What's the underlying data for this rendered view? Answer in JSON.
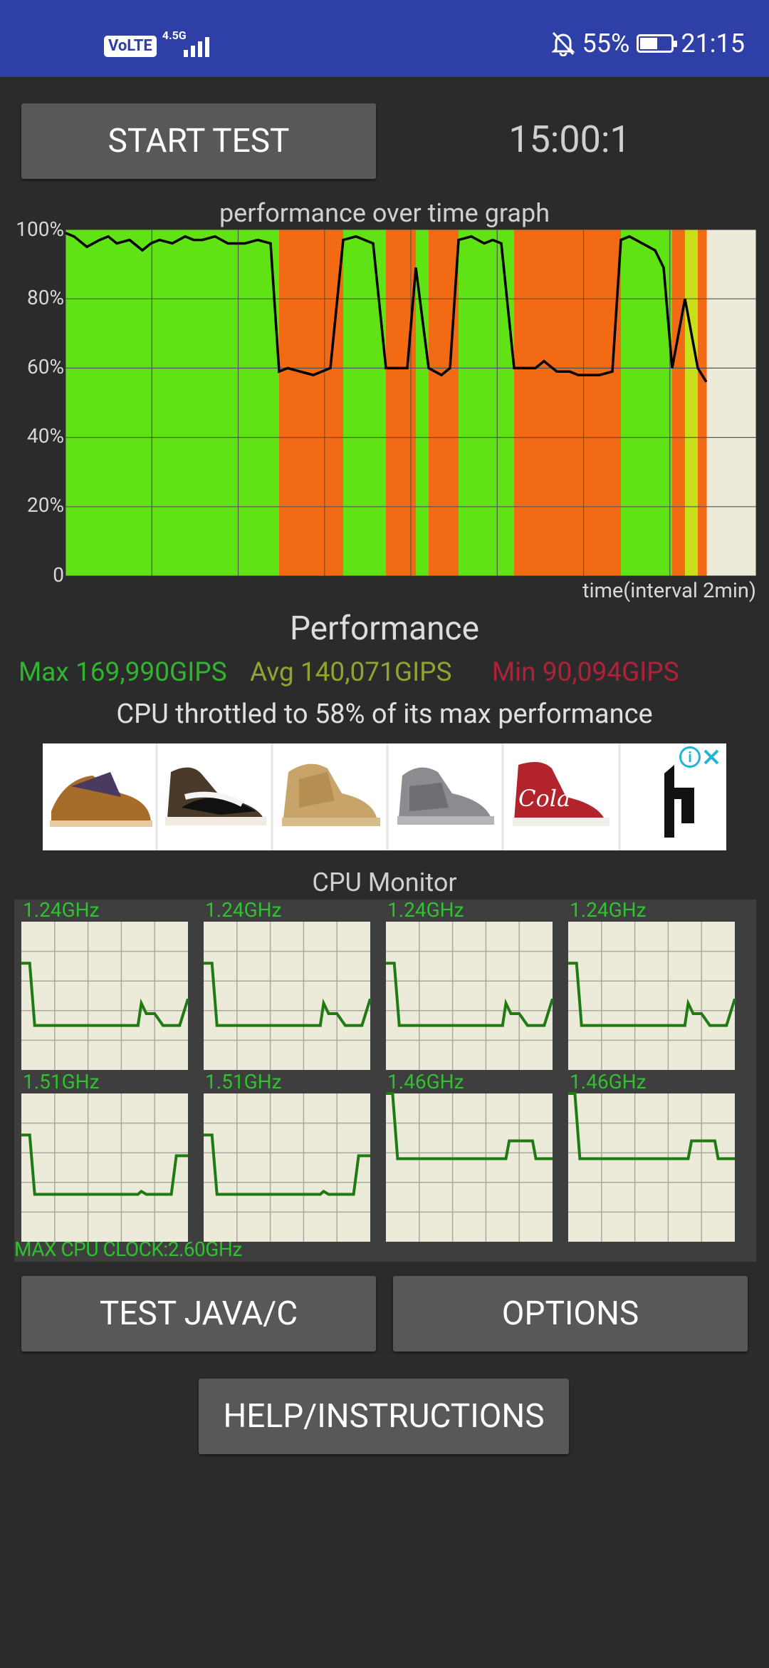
{
  "statusbar": {
    "volte": "VoLTE",
    "network": "4.5G",
    "battery_pct": "55%",
    "time": "21:15",
    "icons": [
      "volte-icon",
      "signal-icon",
      "bell-off-icon",
      "battery-icon"
    ]
  },
  "controls": {
    "start_label": "START TEST",
    "timer": "15:00:1",
    "test_java_label": "TEST JAVA/C",
    "options_label": "OPTIONS",
    "help_label": "HELP/INSTRUCTIONS"
  },
  "graph": {
    "title": "performance over time graph",
    "xlabel": "time(interval 2min)",
    "yticks": [
      "100%",
      "80%",
      "60%",
      "40%",
      "20%",
      "0"
    ]
  },
  "chart_data": [
    {
      "type": "area",
      "title": "performance over time graph",
      "xlabel": "time(interval 2min)",
      "ylabel": "",
      "ylim": [
        0,
        100
      ],
      "yticks": [
        0,
        20,
        40,
        60,
        80,
        100
      ],
      "grid": true,
      "series": [
        {
          "x": [
            0,
            0.2,
            0.5,
            0.8,
            1,
            1.2,
            1.5,
            1.8,
            2,
            2.2,
            2.5,
            2.8,
            3,
            3.2,
            3.5,
            3.8,
            4,
            4.2,
            4.5,
            4.8,
            5,
            5.2,
            5.5,
            5.8,
            6,
            6.2,
            6.5,
            6.8,
            7,
            7.2,
            7.5,
            7.8,
            8,
            8.2,
            8.5,
            8.8,
            9,
            9.2,
            9.5,
            9.8,
            10,
            10.2,
            10.5,
            10.8,
            11,
            11.2,
            11.5,
            11.8,
            12,
            12.2,
            12.5,
            12.8,
            13,
            13.2,
            13.5,
            13.8,
            14,
            14.2,
            14.5,
            14.8,
            15
          ],
          "values": [
            99,
            98,
            95,
            97,
            98,
            96,
            97,
            94,
            96,
            97,
            96,
            98,
            97,
            97,
            98,
            96,
            96,
            96,
            97,
            96,
            59,
            60,
            59,
            58,
            59,
            60,
            97,
            98,
            97,
            96,
            60,
            60,
            60,
            89,
            60,
            58,
            60,
            97,
            98,
            96,
            97,
            96,
            60,
            60,
            60,
            62,
            59,
            59,
            58,
            58,
            58,
            59,
            97,
            98,
            96,
            94,
            89,
            60,
            80,
            60,
            56
          ]
        }
      ]
    }
  ],
  "performance": {
    "title": "Performance",
    "max": "Max 169,990GIPS",
    "avg": "Avg 140,071GIPS",
    "min": "Min 90,094GIPS",
    "throttle": "CPU throttled to 58% of its max performance",
    "colors": {
      "max": "#2fb52f",
      "avg": "#8fa52e",
      "min": "#b0223a"
    }
  },
  "ad": {
    "items": [
      "sneaker-1",
      "sneaker-2",
      "sneaker-3",
      "sneaker-4",
      "sneaker-5"
    ],
    "info_icon": "i"
  },
  "cpu_monitor": {
    "title": "CPU Monitor",
    "max_clock": "MAX CPU CLOCK:2.60GHz",
    "cores": [
      {
        "label": "1.24GHz",
        "trace": [
          [
            0,
            0.72
          ],
          [
            0.05,
            0.72
          ],
          [
            0.08,
            0.3
          ],
          [
            0.7,
            0.3
          ],
          [
            0.72,
            0.45
          ],
          [
            0.75,
            0.38
          ],
          [
            0.8,
            0.38
          ],
          [
            0.85,
            0.3
          ],
          [
            0.95,
            0.3
          ],
          [
            1,
            0.48
          ]
        ]
      },
      {
        "label": "1.24GHz",
        "trace": [
          [
            0,
            0.72
          ],
          [
            0.05,
            0.72
          ],
          [
            0.08,
            0.3
          ],
          [
            0.7,
            0.3
          ],
          [
            0.72,
            0.45
          ],
          [
            0.75,
            0.38
          ],
          [
            0.8,
            0.38
          ],
          [
            0.85,
            0.3
          ],
          [
            0.95,
            0.3
          ],
          [
            1,
            0.48
          ]
        ]
      },
      {
        "label": "1.24GHz",
        "trace": [
          [
            0,
            0.72
          ],
          [
            0.05,
            0.72
          ],
          [
            0.08,
            0.3
          ],
          [
            0.7,
            0.3
          ],
          [
            0.72,
            0.45
          ],
          [
            0.75,
            0.38
          ],
          [
            0.8,
            0.38
          ],
          [
            0.85,
            0.3
          ],
          [
            0.95,
            0.3
          ],
          [
            1,
            0.48
          ]
        ]
      },
      {
        "label": "1.24GHz",
        "trace": [
          [
            0,
            0.72
          ],
          [
            0.05,
            0.72
          ],
          [
            0.08,
            0.3
          ],
          [
            0.7,
            0.3
          ],
          [
            0.72,
            0.45
          ],
          [
            0.75,
            0.38
          ],
          [
            0.8,
            0.38
          ],
          [
            0.85,
            0.3
          ],
          [
            0.95,
            0.3
          ],
          [
            1,
            0.48
          ]
        ]
      },
      {
        "label": "1.51GHz",
        "trace": [
          [
            0,
            0.72
          ],
          [
            0.05,
            0.72
          ],
          [
            0.08,
            0.32
          ],
          [
            0.7,
            0.32
          ],
          [
            0.72,
            0.34
          ],
          [
            0.75,
            0.32
          ],
          [
            0.9,
            0.32
          ],
          [
            0.93,
            0.58
          ],
          [
            1,
            0.58
          ]
        ]
      },
      {
        "label": "1.51GHz",
        "trace": [
          [
            0,
            0.72
          ],
          [
            0.05,
            0.72
          ],
          [
            0.08,
            0.32
          ],
          [
            0.7,
            0.32
          ],
          [
            0.72,
            0.34
          ],
          [
            0.75,
            0.32
          ],
          [
            0.9,
            0.32
          ],
          [
            0.93,
            0.58
          ],
          [
            1,
            0.58
          ]
        ]
      },
      {
        "label": "1.46GHz",
        "trace": [
          [
            0,
            1.0
          ],
          [
            0.04,
            1.0
          ],
          [
            0.07,
            0.56
          ],
          [
            0.72,
            0.56
          ],
          [
            0.74,
            0.68
          ],
          [
            0.88,
            0.68
          ],
          [
            0.9,
            0.56
          ],
          [
            1,
            0.56
          ]
        ]
      },
      {
        "label": "1.46GHz",
        "trace": [
          [
            0,
            1.0
          ],
          [
            0.04,
            1.0
          ],
          [
            0.07,
            0.56
          ],
          [
            0.72,
            0.56
          ],
          [
            0.74,
            0.68
          ],
          [
            0.88,
            0.68
          ],
          [
            0.9,
            0.56
          ],
          [
            1,
            0.56
          ]
        ]
      }
    ]
  }
}
